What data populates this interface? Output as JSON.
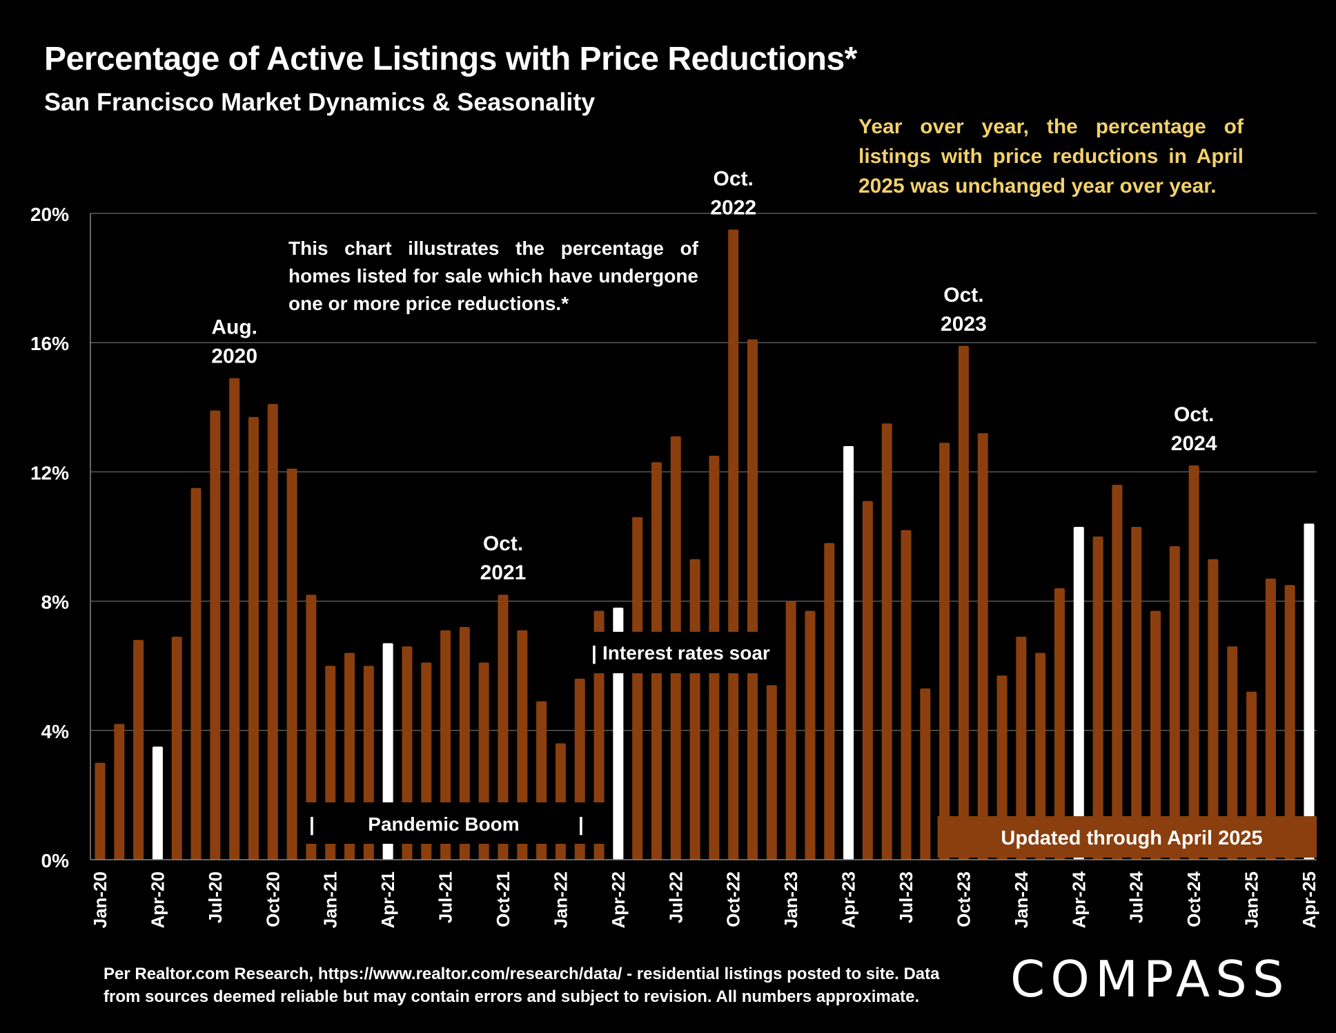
{
  "header": {
    "title": "Percentage of Active Listings with Price Reductions*",
    "subtitle": "San Francisco Market Dynamics & Seasonality"
  },
  "notes": {
    "yoy": "Year over year, the percentage of listings with price reductions in April 2025 was unchanged year over year.",
    "description": "This chart illustrates the percentage of homes listed for sale which have undergone one or more price reductions.*"
  },
  "footer": {
    "line1": "Per Realtor.com Research, https://www.realtor.com/research/data/ - residential listings posted to site.  Data",
    "line2": "from sources deemed reliable but may contain errors and subject to revision. All numbers approximate."
  },
  "brand": {
    "logo_text": "COMPASS"
  },
  "colors": {
    "bar": "#8b3f0e",
    "highlight_bar": "#ffffff",
    "note": "#f2d16b",
    "background": "#000000",
    "grid": "#5a5a5a"
  },
  "chart_data": {
    "type": "bar",
    "title": "Percentage of Active Listings with Price Reductions*",
    "subtitle": "San Francisco Market Dynamics & Seasonality",
    "xlabel": "",
    "ylabel": "",
    "ylim": [
      0,
      20
    ],
    "yticks": [
      0,
      4,
      8,
      12,
      16,
      20
    ],
    "ytick_labels": [
      "0%",
      "4%",
      "8%",
      "12%",
      "16%",
      "20%"
    ],
    "grid": true,
    "categories": [
      "Jan-20",
      "Feb-20",
      "Mar-20",
      "Apr-20",
      "May-20",
      "Jun-20",
      "Jul-20",
      "Aug-20",
      "Sep-20",
      "Oct-20",
      "Nov-20",
      "Dec-20",
      "Jan-21",
      "Feb-21",
      "Mar-21",
      "Apr-21",
      "May-21",
      "Jun-21",
      "Jul-21",
      "Aug-21",
      "Sep-21",
      "Oct-21",
      "Nov-21",
      "Dec-21",
      "Jan-22",
      "Feb-22",
      "Mar-22",
      "Apr-22",
      "May-22",
      "Jun-22",
      "Jul-22",
      "Aug-22",
      "Sep-22",
      "Oct-22",
      "Nov-22",
      "Dec-22",
      "Jan-23",
      "Feb-23",
      "Mar-23",
      "Apr-23",
      "May-23",
      "Jun-23",
      "Jul-23",
      "Aug-23",
      "Sep-23",
      "Oct-23",
      "Nov-23",
      "Dec-23",
      "Jan-24",
      "Feb-24",
      "Mar-24",
      "Apr-24",
      "May-24",
      "Jun-24",
      "Jul-24",
      "Aug-24",
      "Sep-24",
      "Oct-24",
      "Nov-24",
      "Dec-24",
      "Jan-25",
      "Feb-25",
      "Mar-25",
      "Apr-25"
    ],
    "xtick_labels": [
      "Jan-20",
      "Apr-20",
      "Jul-20",
      "Oct-20",
      "Jan-21",
      "Apr-21",
      "Jul-21",
      "Oct-21",
      "Jan-22",
      "Apr-22",
      "Jul-22",
      "Oct-22",
      "Jan-23",
      "Apr-23",
      "Jul-23",
      "Oct-23",
      "Jan-24",
      "Apr-24",
      "Jul-24",
      "Oct-24",
      "Jan-25",
      "Apr-25"
    ],
    "values": [
      3.0,
      4.2,
      6.8,
      3.5,
      6.9,
      11.5,
      13.9,
      14.9,
      13.7,
      14.1,
      12.1,
      8.2,
      6.0,
      6.4,
      6.0,
      6.7,
      6.6,
      6.1,
      7.1,
      7.2,
      6.1,
      8.2,
      7.1,
      4.9,
      3.6,
      5.6,
      7.7,
      7.8,
      10.6,
      12.3,
      13.1,
      9.3,
      12.5,
      19.5,
      16.1,
      5.4,
      8.0,
      7.7,
      9.8,
      12.8,
      11.1,
      13.5,
      10.2,
      5.3,
      12.9,
      15.9,
      13.2,
      5.7,
      6.9,
      6.4,
      8.4,
      10.3,
      10.0,
      11.6,
      10.3,
      7.7,
      9.7,
      12.2,
      9.3,
      6.6,
      5.2,
      8.7,
      8.5,
      10.4
    ],
    "highlighted": [
      "Apr-20",
      "Apr-21",
      "Apr-22",
      "Apr-23",
      "Apr-24",
      "Apr-25"
    ],
    "annotations": [
      {
        "text": "Aug.\n2020",
        "at": "Aug-20"
      },
      {
        "text": "Oct.\n2021",
        "at": "Oct-21"
      },
      {
        "text": "Oct.\n2022",
        "at": "Oct-22"
      },
      {
        "text": "Oct.\n2023",
        "at": "Oct-23"
      },
      {
        "text": "Oct.\n2024",
        "at": "Oct-24"
      }
    ],
    "period_labels": [
      {
        "text": "Pandemic Boom",
        "from": "Dec-20",
        "to": "Mar-22"
      },
      {
        "text": "Interest rates soar",
        "from": "Apr-22",
        "to": "Nov-22"
      },
      {
        "text": "Updated through April 2025",
        "from": "Sep-23",
        "to": "Apr-25"
      }
    ]
  }
}
